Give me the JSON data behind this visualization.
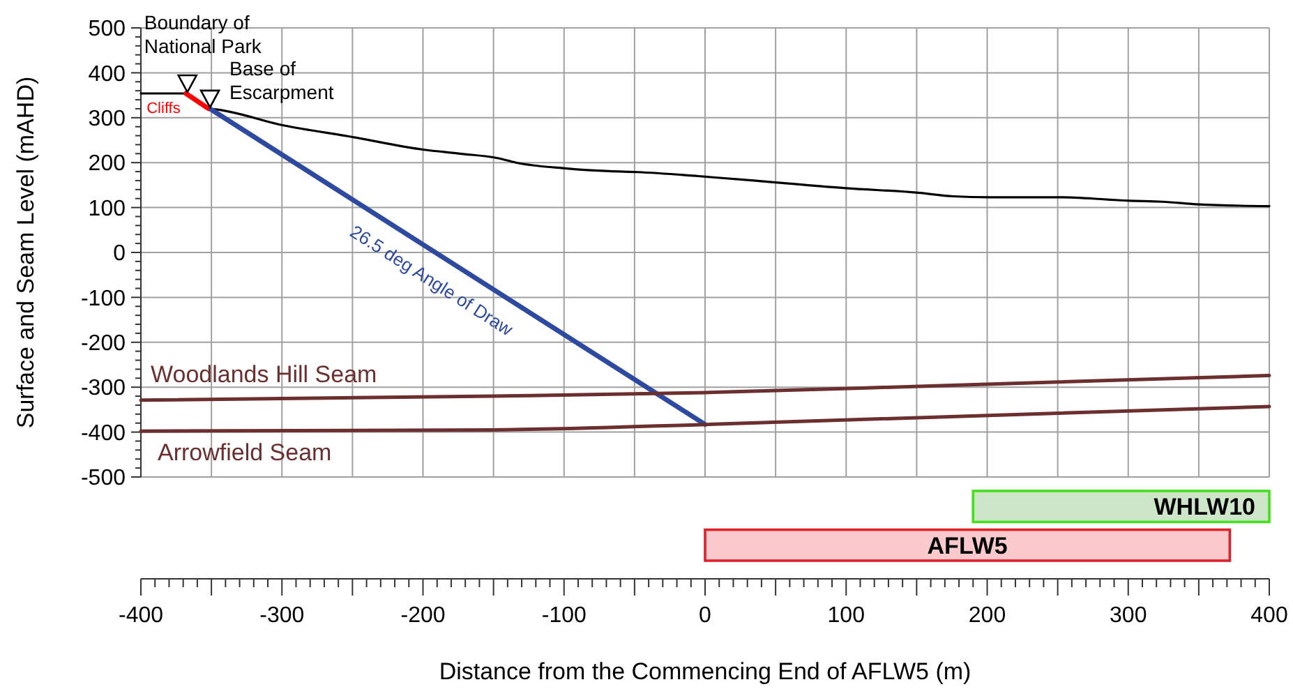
{
  "chart_data": [
    {
      "type": "line",
      "ylabel": "Surface and Seam Level (mAHD)",
      "xlim": [
        -400,
        400
      ],
      "ylim": [
        -500,
        500
      ],
      "xticks": [
        -400,
        -350,
        -300,
        -250,
        -200,
        -150,
        -100,
        -50,
        0,
        50,
        100,
        150,
        200,
        250,
        300,
        350,
        400
      ],
      "yticks": [
        -500,
        {
          "value": -480,
          "label": null
        },
        {
          "value": -460,
          "label": null
        },
        {
          "value": -440,
          "label": null
        },
        {
          "value": -420,
          "label": null
        },
        -400,
        {
          "value": -380,
          "label": null
        },
        {
          "value": -360,
          "label": null
        },
        {
          "value": -340,
          "label": null
        },
        {
          "value": -320,
          "label": null
        },
        -300,
        {
          "value": -280,
          "label": null
        },
        {
          "value": -260,
          "label": null
        },
        {
          "value": -240,
          "label": null
        },
        {
          "value": -220,
          "label": null
        },
        -200,
        {
          "value": -180,
          "label": null
        },
        {
          "value": -160,
          "label": null
        },
        {
          "value": -140,
          "label": null
        },
        {
          "value": -120,
          "label": null
        },
        -100,
        {
          "value": -80,
          "label": null
        },
        {
          "value": -60,
          "label": null
        },
        {
          "value": -40,
          "label": null
        },
        {
          "value": -20,
          "label": null
        },
        0,
        {
          "value": 20,
          "label": null
        },
        {
          "value": 40,
          "label": null
        },
        {
          "value": 60,
          "label": null
        },
        {
          "value": 80,
          "label": null
        },
        100,
        {
          "value": 120,
          "label": null
        },
        {
          "value": 140,
          "label": null
        },
        {
          "value": 160,
          "label": null
        },
        {
          "value": 180,
          "label": null
        },
        200,
        {
          "value": 220,
          "label": null
        },
        {
          "value": 240,
          "label": null
        },
        {
          "value": 260,
          "label": null
        },
        {
          "value": 280,
          "label": null
        },
        300,
        {
          "value": 320,
          "label": null
        },
        {
          "value": 340,
          "label": null
        },
        {
          "value": 360,
          "label": null
        },
        {
          "value": 380,
          "label": null
        },
        400,
        {
          "value": 420,
          "label": null
        },
        {
          "value": 440,
          "label": null
        },
        {
          "value": 460,
          "label": null
        },
        {
          "value": 480,
          "label": null
        },
        500
      ],
      "tick_labels": "y",
      "grid": true,
      "marker": "none",
      "line_style": "solid",
      "series": [
        {
          "color": "#000000",
          "x": [
            -400,
            -370,
            -352,
            -348,
            -299,
            -250,
            -200,
            -174,
            -147,
            -134,
            -98,
            -68,
            -48,
            -5,
            50,
            100,
            151,
            176,
            201,
            252,
            301,
            324,
            350,
            400
          ],
          "values": [
            354,
            354,
            320,
            319,
            283,
            257,
            229,
            220,
            210,
            200,
            187,
            181,
            179,
            170,
            156,
            143,
            133,
            125,
            123,
            123,
            115,
            113,
            107,
            103
          ]
        },
        {
          "name": "Cliffs",
          "color": "#ff0000",
          "x": [
            -368,
            -352
          ],
          "values": [
            354,
            320
          ]
        },
        {
          "name": "26.5 deg Angle of Draw",
          "color": "#2e4aa0",
          "x": [
            -350,
            0
          ],
          "values": [
            318,
            -383
          ]
        },
        {
          "name": "Woodlands Hill Seam",
          "color": "#6b2f2f",
          "x": [
            -400,
            -150,
            0,
            111,
            400
          ],
          "values": [
            -329,
            -320,
            -312,
            -302,
            -274
          ]
        },
        {
          "name": "Arrowfield Seam",
          "color": "#6b2f2f",
          "x": [
            -400,
            -150,
            -110,
            0,
            400
          ],
          "values": [
            -398,
            -395,
            -393,
            -383,
            -343
          ]
        }
      ],
      "annotations": [
        {
          "text": "Boundary of National Park",
          "x": -367,
          "y": 354
        },
        {
          "text": "Base of Escarpment",
          "x": -351,
          "y": 320
        }
      ]
    },
    {
      "type": "bar",
      "orientation": "horizontal",
      "categories": [
        "WHLW10",
        "AFLW5"
      ],
      "base": [
        190,
        0
      ],
      "values": [
        210,
        372
      ],
      "colors": [
        "#cde6c7",
        "#f9c9cb"
      ],
      "xlabel": "Distance from the Commencing End of AFLW5 (m)",
      "xlim": [
        -400,
        400
      ],
      "tick_labels": "x",
      "xticks": [
        -400,
        {
          "value": -390,
          "label": null
        },
        {
          "value": -380,
          "label": null
        },
        {
          "value": -370,
          "label": null
        },
        {
          "value": -360,
          "label": null
        },
        {
          "value": -350,
          "label": null
        },
        {
          "value": -340,
          "label": null
        },
        {
          "value": -330,
          "label": null
        },
        {
          "value": -320,
          "label": null
        },
        {
          "value": -310,
          "label": null
        },
        -300,
        {
          "value": -290,
          "label": null
        },
        {
          "value": -280,
          "label": null
        },
        {
          "value": -270,
          "label": null
        },
        {
          "value": -260,
          "label": null
        },
        {
          "value": -250,
          "label": null
        },
        {
          "value": -240,
          "label": null
        },
        {
          "value": -230,
          "label": null
        },
        {
          "value": -220,
          "label": null
        },
        {
          "value": -210,
          "label": null
        },
        -200,
        {
          "value": -190,
          "label": null
        },
        {
          "value": -180,
          "label": null
        },
        {
          "value": -170,
          "label": null
        },
        {
          "value": -160,
          "label": null
        },
        {
          "value": -150,
          "label": null
        },
        {
          "value": -140,
          "label": null
        },
        {
          "value": -130,
          "label": null
        },
        {
          "value": -120,
          "label": null
        },
        {
          "value": -110,
          "label": null
        },
        -100,
        {
          "value": -90,
          "label": null
        },
        {
          "value": -80,
          "label": null
        },
        {
          "value": -70,
          "label": null
        },
        {
          "value": -60,
          "label": null
        },
        {
          "value": -50,
          "label": null
        },
        {
          "value": -40,
          "label": null
        },
        {
          "value": -30,
          "label": null
        },
        {
          "value": -20,
          "label": null
        },
        {
          "value": -10,
          "label": null
        },
        0,
        {
          "value": 10,
          "label": null
        },
        {
          "value": 20,
          "label": null
        },
        {
          "value": 30,
          "label": null
        },
        {
          "value": 40,
          "label": null
        },
        {
          "value": 50,
          "label": null
        },
        {
          "value": 60,
          "label": null
        },
        {
          "value": 70,
          "label": null
        },
        {
          "value": 80,
          "label": null
        },
        {
          "value": 90,
          "label": null
        },
        100,
        {
          "value": 110,
          "label": null
        },
        {
          "value": 120,
          "label": null
        },
        {
          "value": 130,
          "label": null
        },
        {
          "value": 140,
          "label": null
        },
        {
          "value": 150,
          "label": null
        },
        {
          "value": 160,
          "label": null
        },
        {
          "value": 170,
          "label": null
        },
        {
          "value": 180,
          "label": null
        },
        {
          "value": 190,
          "label": null
        },
        200,
        {
          "value": 210,
          "label": null
        },
        {
          "value": 220,
          "label": null
        },
        {
          "value": 230,
          "label": null
        },
        {
          "value": 240,
          "label": null
        },
        {
          "value": 250,
          "label": null
        },
        {
          "value": 260,
          "label": null
        },
        {
          "value": 270,
          "label": null
        },
        {
          "value": 280,
          "label": null
        },
        {
          "value": 290,
          "label": null
        },
        300,
        {
          "value": 310,
          "label": null
        },
        {
          "value": 320,
          "label": null
        },
        {
          "value": 330,
          "label": null
        },
        {
          "value": 340,
          "label": null
        },
        {
          "value": 350,
          "label": null
        },
        {
          "value": 360,
          "label": null
        },
        {
          "value": 370,
          "label": null
        },
        {
          "value": 380,
          "label": null
        },
        {
          "value": 390,
          "label": null
        },
        400
      ]
    }
  ]
}
